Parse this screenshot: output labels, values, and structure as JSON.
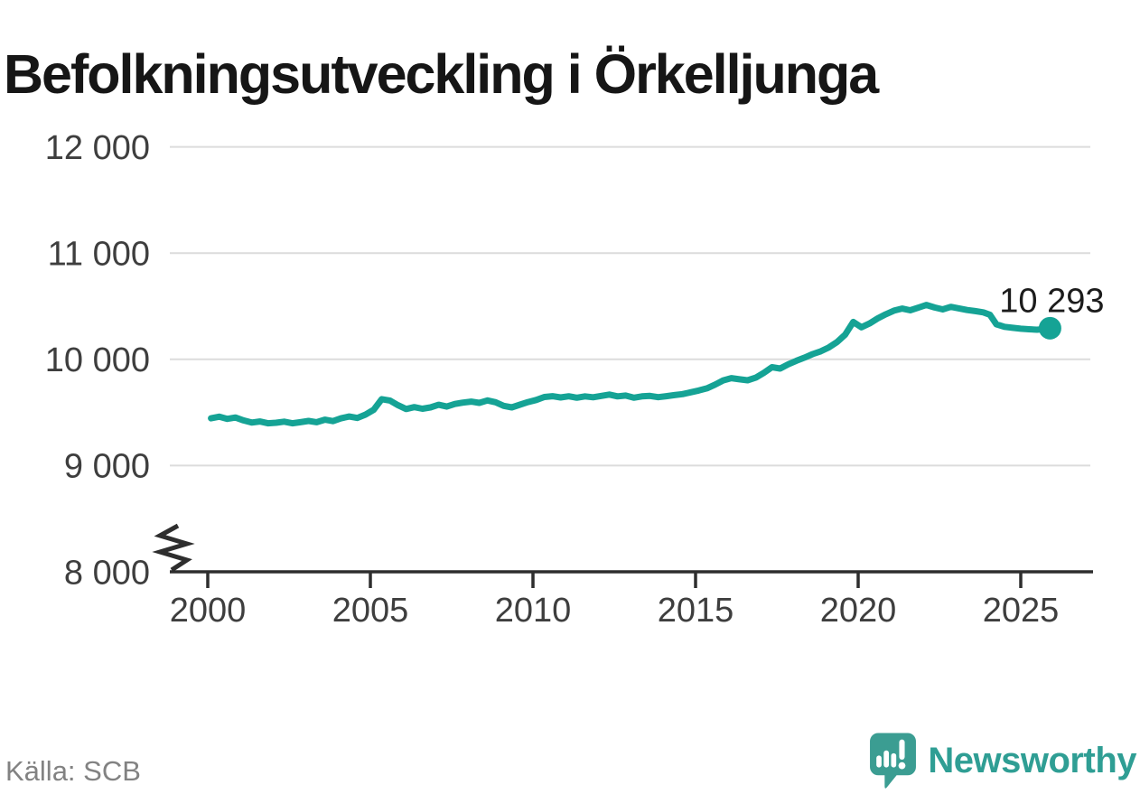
{
  "title": "Befolkningsutveckling i Örkelljunga",
  "source": "Källa: SCB",
  "branding": {
    "logo_text": "Newsworthy",
    "logo_icon": "newsworthy-speech-bubble-chart-icon"
  },
  "colors": {
    "line": "#15a395",
    "grid": "#dcdcdc",
    "axis": "#2e2e2e",
    "tick_text": "#3e3e3e",
    "title_text": "#161616",
    "end_label_text": "#1c1c1c",
    "source_text": "#828282",
    "brand_teal_text": "#2f9e94",
    "brand_teal_mark": "#3b9d92"
  },
  "chart_data": {
    "type": "line",
    "title": "Befolkningsutveckling i Örkelljunga",
    "xlabel": "",
    "ylabel": "",
    "source": "Källa: SCB",
    "grid": "horizontal",
    "legend": "none",
    "ylim": [
      8000,
      12000
    ],
    "xlim": [
      1998.8,
      2027.2
    ],
    "y_axis_break": true,
    "x_ticks": [
      2000,
      2005,
      2010,
      2015,
      2020,
      2025
    ],
    "y_ticks": [
      {
        "value": 8000,
        "label": "8 000"
      },
      {
        "value": 9000,
        "label": "9 000"
      },
      {
        "value": 10000,
        "label": "10 000"
      },
      {
        "value": 11000,
        "label": "11 000"
      },
      {
        "value": 12000,
        "label": "12 000"
      }
    ],
    "end_point": {
      "x": 2025.9,
      "y": 10293,
      "label": "10 293"
    },
    "series": [
      {
        "name": "Befolkning",
        "color": "#15a395",
        "points": [
          [
            2000.1,
            9445
          ],
          [
            2000.35,
            9460
          ],
          [
            2000.6,
            9440
          ],
          [
            2000.85,
            9452
          ],
          [
            2001.1,
            9425
          ],
          [
            2001.35,
            9405
          ],
          [
            2001.6,
            9415
          ],
          [
            2001.85,
            9398
          ],
          [
            2002.1,
            9403
          ],
          [
            2002.35,
            9413
          ],
          [
            2002.6,
            9398
          ],
          [
            2002.85,
            9408
          ],
          [
            2003.1,
            9420
          ],
          [
            2003.35,
            9408
          ],
          [
            2003.6,
            9432
          ],
          [
            2003.85,
            9418
          ],
          [
            2004.1,
            9445
          ],
          [
            2004.35,
            9462
          ],
          [
            2004.6,
            9448
          ],
          [
            2004.85,
            9480
          ],
          [
            2005.1,
            9525
          ],
          [
            2005.35,
            9625
          ],
          [
            2005.6,
            9612
          ],
          [
            2005.85,
            9568
          ],
          [
            2006.1,
            9532
          ],
          [
            2006.35,
            9550
          ],
          [
            2006.6,
            9535
          ],
          [
            2006.85,
            9548
          ],
          [
            2007.1,
            9572
          ],
          [
            2007.35,
            9555
          ],
          [
            2007.6,
            9580
          ],
          [
            2007.85,
            9593
          ],
          [
            2008.1,
            9602
          ],
          [
            2008.35,
            9590
          ],
          [
            2008.6,
            9613
          ],
          [
            2008.85,
            9596
          ],
          [
            2009.1,
            9562
          ],
          [
            2009.35,
            9548
          ],
          [
            2009.6,
            9573
          ],
          [
            2009.85,
            9598
          ],
          [
            2010.1,
            9617
          ],
          [
            2010.35,
            9645
          ],
          [
            2010.6,
            9653
          ],
          [
            2010.85,
            9641
          ],
          [
            2011.1,
            9652
          ],
          [
            2011.35,
            9639
          ],
          [
            2011.6,
            9651
          ],
          [
            2011.85,
            9643
          ],
          [
            2012.1,
            9656
          ],
          [
            2012.35,
            9668
          ],
          [
            2012.6,
            9651
          ],
          [
            2012.85,
            9659
          ],
          [
            2013.1,
            9639
          ],
          [
            2013.35,
            9651
          ],
          [
            2013.6,
            9656
          ],
          [
            2013.85,
            9644
          ],
          [
            2014.1,
            9653
          ],
          [
            2014.35,
            9663
          ],
          [
            2014.6,
            9673
          ],
          [
            2014.85,
            9690
          ],
          [
            2015.1,
            9707
          ],
          [
            2015.35,
            9727
          ],
          [
            2015.6,
            9762
          ],
          [
            2015.85,
            9802
          ],
          [
            2016.1,
            9823
          ],
          [
            2016.35,
            9812
          ],
          [
            2016.6,
            9803
          ],
          [
            2016.85,
            9827
          ],
          [
            2017.1,
            9873
          ],
          [
            2017.35,
            9926
          ],
          [
            2017.6,
            9913
          ],
          [
            2017.85,
            9953
          ],
          [
            2018.1,
            9986
          ],
          [
            2018.35,
            10016
          ],
          [
            2018.6,
            10049
          ],
          [
            2018.85,
            10076
          ],
          [
            2019.1,
            10112
          ],
          [
            2019.35,
            10162
          ],
          [
            2019.6,
            10232
          ],
          [
            2019.85,
            10352
          ],
          [
            2020.1,
            10302
          ],
          [
            2020.35,
            10338
          ],
          [
            2020.6,
            10385
          ],
          [
            2020.85,
            10424
          ],
          [
            2021.1,
            10458
          ],
          [
            2021.35,
            10478
          ],
          [
            2021.6,
            10462
          ],
          [
            2021.85,
            10486
          ],
          [
            2022.1,
            10512
          ],
          [
            2022.35,
            10488
          ],
          [
            2022.6,
            10470
          ],
          [
            2022.85,
            10494
          ],
          [
            2023.1,
            10480
          ],
          [
            2023.35,
            10464
          ],
          [
            2023.6,
            10454
          ],
          [
            2023.85,
            10442
          ],
          [
            2024.05,
            10420
          ],
          [
            2024.25,
            10330
          ],
          [
            2024.5,
            10306
          ],
          [
            2024.75,
            10297
          ],
          [
            2025.0,
            10288
          ],
          [
            2025.25,
            10283
          ],
          [
            2025.5,
            10279
          ],
          [
            2025.7,
            10284
          ],
          [
            2025.9,
            10293
          ]
        ]
      }
    ]
  }
}
